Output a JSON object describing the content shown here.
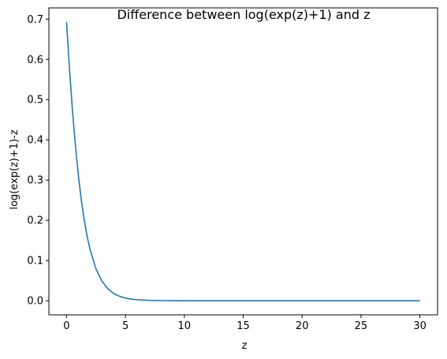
{
  "chart_data": {
    "type": "line",
    "title": "Difference between log(exp(z)+1) and z",
    "xlabel": "z",
    "ylabel": "log(exp(z)+1)-z",
    "xlim": [
      -1.5,
      31.5
    ],
    "ylim": [
      -0.035,
      0.728
    ],
    "xticks": [
      0,
      5,
      10,
      15,
      20,
      25,
      30
    ],
    "xtick_labels": [
      "0",
      "5",
      "10",
      "15",
      "20",
      "25",
      "30"
    ],
    "yticks": [
      0.0,
      0.1,
      0.2,
      0.3,
      0.4,
      0.5,
      0.6,
      0.7
    ],
    "ytick_labels": [
      "0.0",
      "0.1",
      "0.2",
      "0.3",
      "0.4",
      "0.5",
      "0.6",
      "0.7"
    ],
    "grid": false,
    "series": [
      {
        "color": "#1f77b4",
        "x": [
          0,
          0.25,
          0.5,
          0.75,
          1,
          1.25,
          1.5,
          1.75,
          2,
          2.5,
          3,
          3.5,
          4,
          4.5,
          5,
          5.5,
          6,
          7,
          8,
          9,
          10,
          12,
          15,
          20,
          25,
          30
        ],
        "y": [
          0.693,
          0.576,
          0.474,
          0.386,
          0.313,
          0.251,
          0.201,
          0.16,
          0.127,
          0.079,
          0.049,
          0.03,
          0.018,
          0.011,
          0.0067,
          0.0041,
          0.0025,
          0.0009,
          0.0003,
          0.0001,
          0.0,
          0.0,
          0.0,
          0.0,
          0.0,
          0.0
        ]
      }
    ]
  }
}
